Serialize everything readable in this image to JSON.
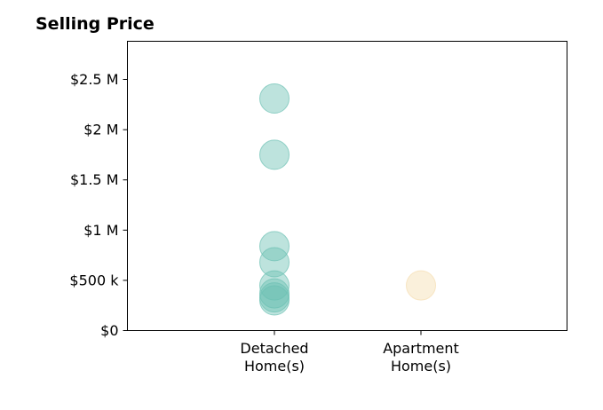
{
  "chart_data": {
    "type": "scatter",
    "title": "Selling Price",
    "xlabel": "",
    "ylabel": "",
    "categories": [
      [
        "Detached",
        "Home(s)"
      ],
      [
        "Apartment",
        "Home(s)"
      ]
    ],
    "ylim": [
      0,
      2880000
    ],
    "yticks": [
      {
        "value": 0,
        "label": "$0"
      },
      {
        "value": 500000,
        "label": "$500 k"
      },
      {
        "value": 1000000,
        "label": "$1 M"
      },
      {
        "value": 1500000,
        "label": "$1.5 M"
      },
      {
        "value": 2000000,
        "label": "$2 M"
      },
      {
        "value": 2500000,
        "label": "$2.5 M"
      }
    ],
    "grid": false,
    "series": [
      {
        "category_index": 0,
        "color": "#6cc0b3",
        "values": [
          2310000,
          1750000,
          840000,
          680000,
          450000,
          370000,
          330000,
          300000
        ]
      },
      {
        "category_index": 1,
        "color": "#f5ddb0",
        "values": [
          450000
        ]
      }
    ]
  }
}
